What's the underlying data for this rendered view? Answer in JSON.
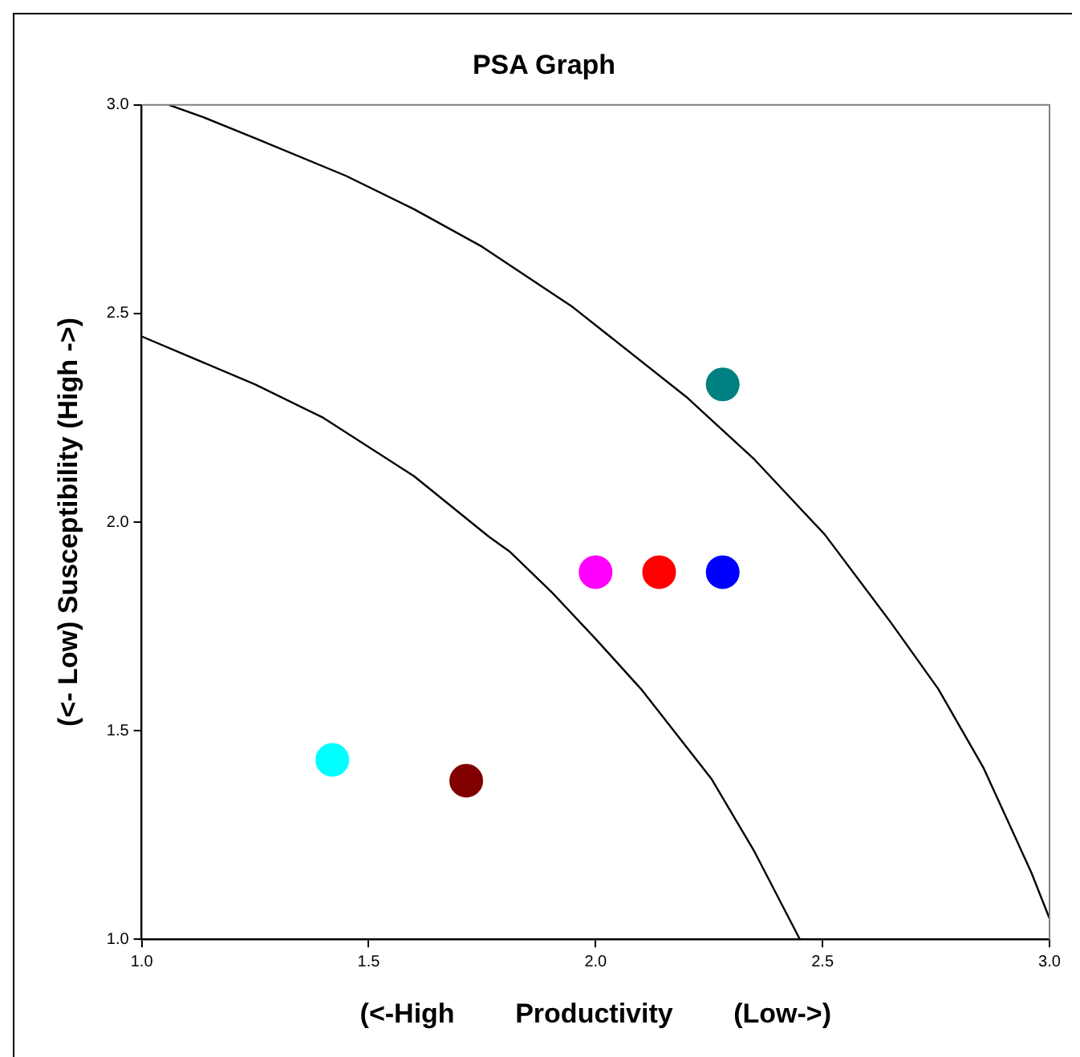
{
  "chart_data": {
    "type": "scatter",
    "title": "PSA Graph",
    "xlabel": "(<-High        Productivity        (Low->)",
    "ylabel": "(<- Low) Susceptibility (High ->)",
    "xlim": [
      1.0,
      3.0
    ],
    "ylim": [
      1.0,
      3.0
    ],
    "xticks": [
      {
        "value": 1,
        "label": "1.0"
      },
      {
        "value": 1.5,
        "label": "1.5"
      },
      {
        "value": 2,
        "label": "2.0"
      },
      {
        "value": 2.5,
        "label": "2.5"
      },
      {
        "value": 3,
        "label": "3.0"
      }
    ],
    "yticks": [
      {
        "value": 1,
        "label": "1.0"
      },
      {
        "value": 1.5,
        "label": "1.5"
      },
      {
        "value": 2,
        "label": "2.0"
      },
      {
        "value": 2.5,
        "label": "2.5"
      },
      {
        "value": 3,
        "label": "3.0"
      }
    ],
    "grid": false,
    "legend": false,
    "marker": "circle",
    "series": [
      {
        "type": "scatter",
        "x": [
          2.28,
          2.0,
          2.14,
          2.28,
          1.42,
          1.715
        ],
        "values": [
          2.33,
          1.88,
          1.88,
          1.88,
          1.43,
          1.38
        ],
        "colors": [
          "#008080",
          "#ff00ff",
          "#ff0000",
          "#0000ff",
          "#00ffff",
          "#800000"
        ]
      },
      {
        "type": "line",
        "color": "#000000",
        "marker": "none",
        "line_style": "solid",
        "x": [
          1.06,
          1.137,
          1.25,
          1.45,
          1.6,
          1.75,
          1.95,
          2.2,
          2.35,
          2.505,
          2.65,
          2.755,
          2.855,
          2.96,
          3.0
        ],
        "values": [
          3.0,
          2.97,
          2.92,
          2.83,
          2.75,
          2.66,
          2.515,
          2.3,
          2.15,
          1.97,
          1.76,
          1.6,
          1.41,
          1.16,
          1.05
        ]
      },
      {
        "type": "line",
        "color": "#000000",
        "marker": "none",
        "line_style": "solid",
        "x": [
          1.0,
          1.25,
          1.4,
          1.6,
          1.765,
          1.81,
          1.905,
          2.0,
          2.1,
          2.255,
          2.35,
          2.45
        ],
        "values": [
          2.445,
          2.33,
          2.25,
          2.11,
          1.965,
          1.93,
          1.83,
          1.72,
          1.6,
          1.385,
          1.21,
          1.0
        ]
      }
    ]
  }
}
